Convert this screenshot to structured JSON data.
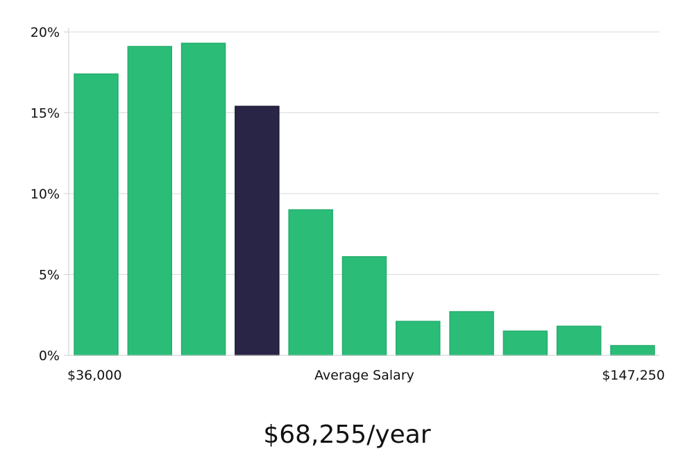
{
  "chart_data": {
    "type": "bar",
    "title": "",
    "xlabel": "Average Salary",
    "ylabel": "",
    "x_min_label": "$36,000",
    "x_max_label": "$147,250",
    "ylim": [
      0,
      20
    ],
    "yticks": [
      0,
      5,
      10,
      15,
      20
    ],
    "ytick_labels": [
      "0%",
      "5%",
      "10%",
      "15%",
      "20%"
    ],
    "grid": true,
    "values": [
      17.4,
      19.1,
      19.3,
      15.4,
      9.0,
      6.1,
      2.1,
      2.7,
      1.5,
      1.8,
      0.6
    ],
    "highlight_index": 3,
    "colors": {
      "bar": "#2bbd78",
      "highlight": "#292546"
    }
  },
  "summary": {
    "average_salary": "$68,255/year"
  }
}
